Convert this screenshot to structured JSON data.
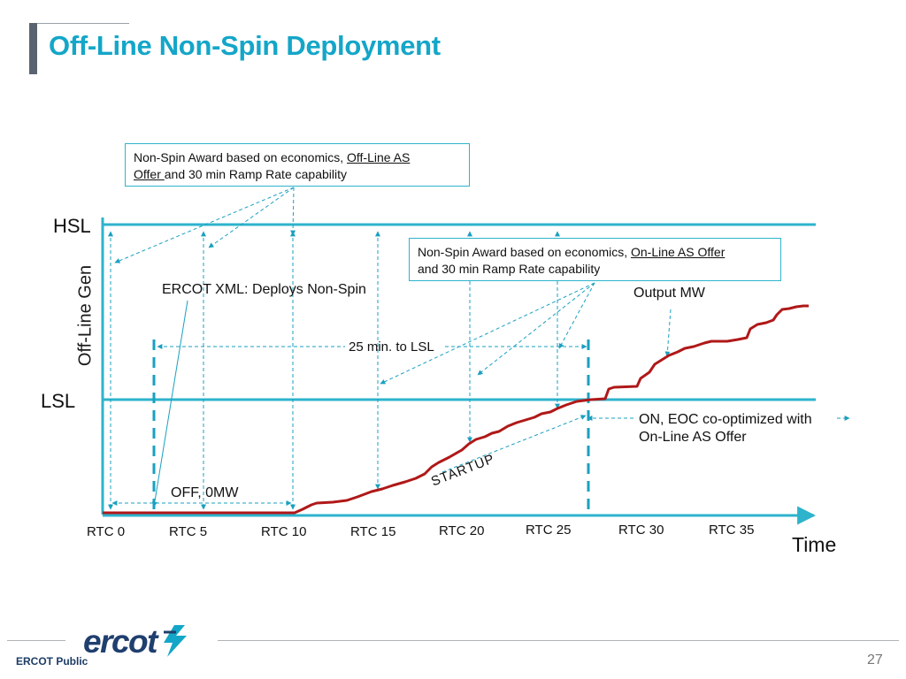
{
  "slide": {
    "title": "Off-Line Non-Spin Deployment",
    "page_number": "27"
  },
  "footer": {
    "classification": "ERCOT Public",
    "logo_text": "ercot"
  },
  "colors": {
    "title": "#14a6c8",
    "level_lines": "#2eb3cc",
    "output_curve": "#b01818",
    "dashed_markers": "#1aa0c0",
    "footer_text": "#1d3c66"
  },
  "chart": {
    "y_axis_label": "Off-Line Gen",
    "x_axis_label": "Time",
    "hsl_label": "HSL",
    "lsl_label": "LSL",
    "x_ticks": [
      "RTC 0",
      "RTC 5",
      "RTC 10",
      "RTC 15",
      "RTC 20",
      "RTC 25",
      "RTC 30",
      "RTC 35"
    ]
  },
  "callouts": {
    "offline_award": {
      "prefix": "Non-Spin Award based on economics, ",
      "link": "Off-Line AS",
      "link2": "Offer ",
      "suffix": "and 30 min Ramp Rate capability"
    },
    "online_award": {
      "prefix": "Non-Spin Award based on economics, ",
      "link": "On-Line AS Offer",
      "suffix": "and 30 min Ramp Rate capability"
    }
  },
  "annotations": {
    "deploy": "ERCOT XML: Deploys Non-Spin",
    "output_mw": "Output MW",
    "ramp_time": "25 min. to LSL",
    "on_eoc_line1": "ON, EOC co-optimized with",
    "on_eoc_line2": "On-Line AS Offer",
    "off_state": "OFF, 0MW",
    "startup": "STARTUP"
  }
}
